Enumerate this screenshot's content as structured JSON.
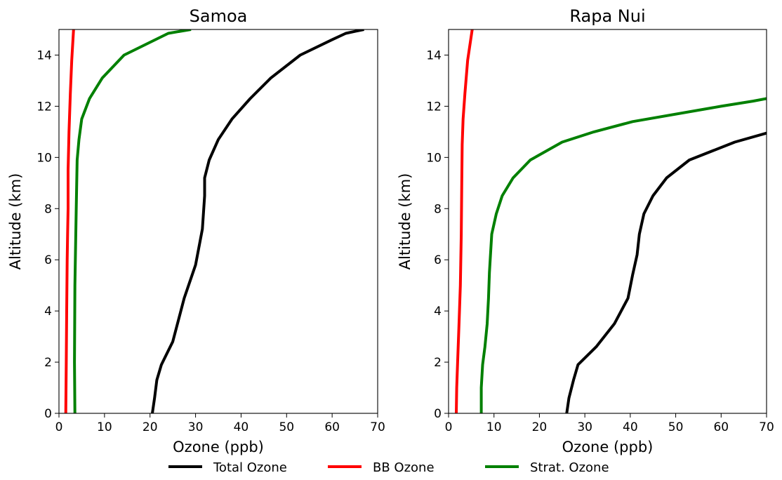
{
  "legend": {
    "placement": "bottom-center",
    "entries": [
      {
        "label": "Total Ozone",
        "color": "#000000"
      },
      {
        "label": "BB Ozone",
        "color": "#ff0000"
      },
      {
        "label": "Strat. Ozone",
        "color": "#008000"
      }
    ]
  },
  "chart_data": [
    {
      "type": "line",
      "title": "Samoa",
      "xlabel": "Ozone (ppb)",
      "ylabel": "Altitude (km)",
      "xlim": [
        0,
        70
      ],
      "ylim": [
        0,
        15
      ],
      "xticks": [
        "0",
        "10",
        "20",
        "30",
        "40",
        "50",
        "60",
        "70"
      ],
      "yticks": [
        "0",
        "2",
        "4",
        "6",
        "8",
        "10",
        "12",
        "14"
      ],
      "grid": false,
      "series": [
        {
          "name": "Total Ozone",
          "color": "#000000",
          "x": [
            20.5,
            21.0,
            21.5,
            22.5,
            25.0,
            27.5,
            30.0,
            31.5,
            32.0,
            32.0,
            33.0,
            35.0,
            38.0,
            42.0,
            46.5,
            53.0,
            60.0,
            63.0,
            67.0
          ],
          "y": [
            0,
            0.6,
            1.3,
            1.9,
            2.8,
            4.5,
            5.8,
            7.2,
            8.5,
            9.2,
            9.9,
            10.7,
            11.5,
            12.3,
            13.1,
            14.0,
            14.6,
            14.85,
            15.0
          ]
        },
        {
          "name": "BB Ozone",
          "color": "#ff0000",
          "x": [
            1.5,
            1.6,
            1.7,
            1.8,
            1.9,
            2.0,
            2.0,
            2.2,
            2.5,
            2.8,
            3.2
          ],
          "y": [
            0,
            2.0,
            4.0,
            6.0,
            7.0,
            8.0,
            9.5,
            11.0,
            12.5,
            13.8,
            15.0
          ]
        },
        {
          "name": "Strat. Ozone",
          "color": "#008000",
          "x": [
            3.5,
            3.4,
            3.5,
            3.8,
            4.0,
            4.4,
            5.0,
            6.7,
            9.5,
            14.3,
            24.0,
            29.0
          ],
          "y": [
            0,
            2.0,
            5.0,
            8.0,
            9.9,
            10.7,
            11.5,
            12.3,
            13.1,
            14.0,
            14.85,
            15.0
          ]
        }
      ]
    },
    {
      "type": "line",
      "title": "Rapa Nui",
      "xlabel": "Ozone (ppb)",
      "ylabel": "Altitude (km)",
      "xlim": [
        0,
        70
      ],
      "ylim": [
        0,
        15
      ],
      "xticks": [
        "0",
        "10",
        "20",
        "30",
        "40",
        "50",
        "60",
        "70"
      ],
      "yticks": [
        "0",
        "2",
        "4",
        "6",
        "8",
        "10",
        "12",
        "14"
      ],
      "grid": false,
      "series": [
        {
          "name": "Total Ozone",
          "color": "#000000",
          "x": [
            26.0,
            26.5,
            27.5,
            28.5,
            32.5,
            36.5,
            39.5,
            40.5,
            41.5,
            42.0,
            43.0,
            45.0,
            48.0,
            53.0,
            63.0,
            70.0
          ],
          "y": [
            0,
            0.6,
            1.3,
            1.9,
            2.6,
            3.5,
            4.5,
            5.4,
            6.2,
            7.0,
            7.8,
            8.5,
            9.2,
            9.9,
            10.6,
            10.95
          ]
        },
        {
          "name": "BB Ozone",
          "color": "#ff0000",
          "x": [
            1.7,
            1.8,
            2.0,
            2.3,
            2.6,
            2.8,
            2.9,
            3.0,
            3.2,
            3.6,
            4.2,
            5.2
          ],
          "y": [
            0,
            1.0,
            2.0,
            3.5,
            5.0,
            7.0,
            9.0,
            10.5,
            11.5,
            12.5,
            13.8,
            15.0
          ]
        },
        {
          "name": "Strat. Ozone",
          "color": "#008000",
          "x": [
            7.2,
            7.2,
            7.5,
            8.0,
            8.5,
            8.8,
            9.0,
            9.5,
            10.5,
            11.8,
            14.2,
            18.0,
            25.0,
            32.0,
            40.5,
            60.0,
            67.0,
            70.0
          ],
          "y": [
            0,
            1.0,
            1.9,
            2.6,
            3.5,
            4.5,
            5.5,
            7.0,
            7.8,
            8.5,
            9.2,
            9.9,
            10.6,
            11.0,
            11.4,
            12.0,
            12.2,
            12.3
          ]
        }
      ]
    }
  ]
}
